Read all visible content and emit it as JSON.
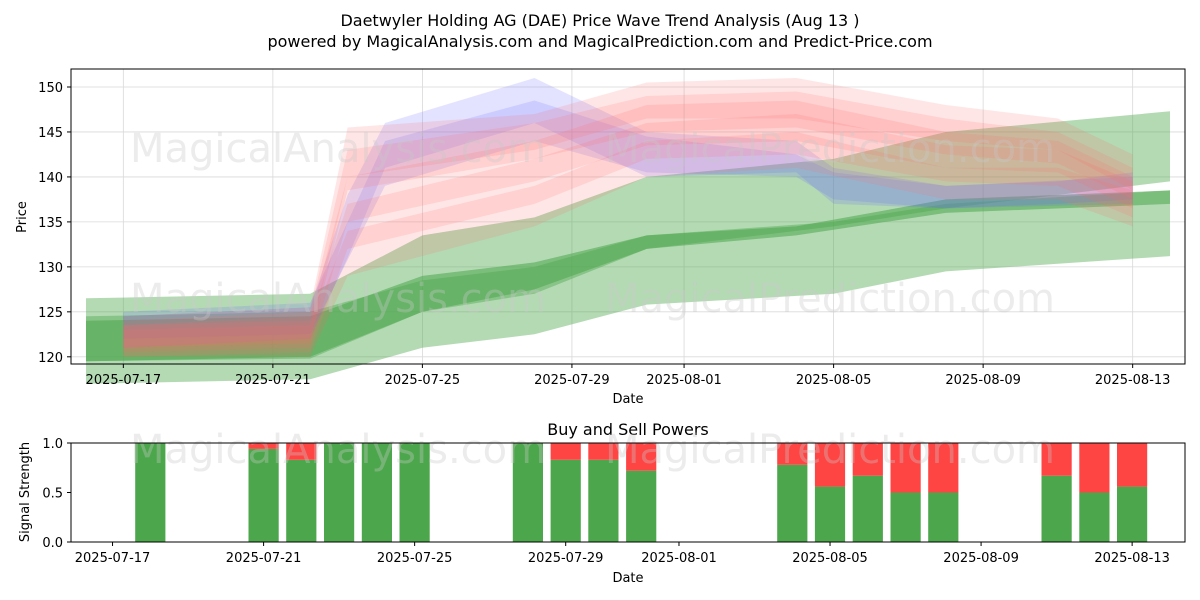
{
  "title_line1": "Daetwyler Holding AG (DAE) Price Wave Trend Analysis (Aug 13 )",
  "title_line2": "powered by MagicalAnalysis.com and MagicalPrediction.com and Predict-Price.com",
  "watermark_a": "MagicalAnalysis.com",
  "watermark_b": "MagicalPrediction.com",
  "colors": {
    "green": "#4ca64c",
    "red": "#ff4444",
    "blue": "#6666ff",
    "pink": "#ff6a6a",
    "grid": "#d9d9d9"
  },
  "chart_data": [
    {
      "type": "area",
      "title": "",
      "xlabel": "Date",
      "ylabel": "Price",
      "xlim": [
        "2025-07-15.6",
        "2025-08-14.4"
      ],
      "ylim": [
        119.2,
        152.0
      ],
      "xticks": [
        "2025-07-17",
        "2025-07-21",
        "2025-07-25",
        "2025-07-29",
        "2025-08-01",
        "2025-08-05",
        "2025-08-09",
        "2025-08-13"
      ],
      "yticks": [
        120,
        125,
        130,
        135,
        140,
        145,
        150
      ],
      "grid": true,
      "green_bands": [
        {
          "name": "wide-upper",
          "x": [
            "2025-07-16",
            "2025-07-22",
            "2025-07-25",
            "2025-07-28",
            "2025-07-31",
            "2025-08-05",
            "2025-08-08",
            "2025-08-14"
          ],
          "upper": [
            126.5,
            127.0,
            133.5,
            135.5,
            140.0,
            142.0,
            145.0,
            147.3
          ],
          "lower": [
            119.5,
            119.8,
            125.0,
            127.0,
            132.0,
            134.5,
            136.5,
            139.5
          ]
        },
        {
          "name": "wide-lower",
          "x": [
            "2025-07-16",
            "2025-07-22",
            "2025-07-25",
            "2025-07-28",
            "2025-07-31",
            "2025-08-05",
            "2025-08-08",
            "2025-08-14"
          ],
          "upper": [
            124.5,
            125.0,
            128.5,
            130.0,
            133.5,
            135.0,
            137.0,
            138.5
          ],
          "lower": [
            117.0,
            117.5,
            121.0,
            122.5,
            125.8,
            127.0,
            129.5,
            131.2
          ]
        },
        {
          "name": "core",
          "x": [
            "2025-07-16",
            "2025-07-22",
            "2025-07-25",
            "2025-07-28",
            "2025-07-31",
            "2025-08-04",
            "2025-08-08",
            "2025-08-14"
          ],
          "upper": [
            124.0,
            124.5,
            129.0,
            130.5,
            133.5,
            134.5,
            137.5,
            138.5
          ],
          "lower": [
            119.5,
            120.0,
            125.0,
            127.5,
            132.0,
            133.5,
            136.0,
            137.0
          ]
        }
      ],
      "blue_bands": [
        {
          "name": "blue-1",
          "x": [
            "2025-07-17",
            "2025-07-22",
            "2025-07-23",
            "2025-07-24",
            "2025-07-28",
            "2025-07-31",
            "2025-08-04",
            "2025-08-05",
            "2025-08-08",
            "2025-08-11",
            "2025-08-13"
          ],
          "upper": [
            124.5,
            125.5,
            138.0,
            146.0,
            151.0,
            145.0,
            144.0,
            141.0,
            139.0,
            139.5,
            140.5
          ],
          "lower": [
            121.0,
            122.0,
            131.0,
            141.0,
            146.0,
            140.0,
            140.5,
            137.0,
            136.5,
            137.0,
            137.5
          ]
        },
        {
          "name": "blue-2",
          "x": [
            "2025-07-17",
            "2025-07-22",
            "2025-07-24",
            "2025-07-28",
            "2025-07-31",
            "2025-08-04",
            "2025-08-05",
            "2025-08-08",
            "2025-08-13"
          ],
          "upper": [
            125.0,
            126.0,
            144.0,
            148.5,
            144.5,
            142.5,
            140.5,
            139.0,
            140.0
          ],
          "lower": [
            122.0,
            122.5,
            139.0,
            144.0,
            140.5,
            140.0,
            137.5,
            136.5,
            137.0
          ]
        }
      ],
      "red_bands": [
        {
          "x": [
            "2025-07-17",
            "2025-07-22",
            "2025-07-23",
            "2025-07-28",
            "2025-07-31",
            "2025-08-04",
            "2025-08-08",
            "2025-08-11",
            "2025-08-13"
          ],
          "upper": [
            124.5,
            125.5,
            145.5,
            147.0,
            150.5,
            151.0,
            148.0,
            146.5,
            142.5
          ],
          "lower": [
            121.0,
            122.0,
            140.0,
            143.0,
            146.5,
            146.5,
            144.0,
            143.0,
            138.5
          ]
        },
        {
          "x": [
            "2025-07-17",
            "2025-07-22",
            "2025-07-23",
            "2025-07-28",
            "2025-07-31",
            "2025-08-04",
            "2025-08-08",
            "2025-08-11",
            "2025-08-13"
          ],
          "upper": [
            124.0,
            125.0,
            143.0,
            146.0,
            149.0,
            149.5,
            146.5,
            145.0,
            141.0
          ],
          "lower": [
            121.0,
            121.5,
            138.5,
            142.0,
            145.0,
            145.5,
            142.5,
            141.5,
            137.5
          ]
        },
        {
          "x": [
            "2025-07-17",
            "2025-07-22",
            "2025-07-23",
            "2025-07-28",
            "2025-07-31",
            "2025-08-04",
            "2025-08-08",
            "2025-08-11",
            "2025-08-13"
          ],
          "upper": [
            123.5,
            124.5,
            140.0,
            144.0,
            148.0,
            148.5,
            145.0,
            144.0,
            140.0
          ],
          "lower": [
            120.5,
            121.0,
            135.0,
            139.5,
            143.5,
            144.0,
            141.0,
            140.5,
            136.5
          ]
        },
        {
          "x": [
            "2025-07-17",
            "2025-07-22",
            "2025-07-23",
            "2025-07-28",
            "2025-07-31",
            "2025-08-04",
            "2025-08-08",
            "2025-08-11",
            "2025-08-13"
          ],
          "upper": [
            123.5,
            124.0,
            137.0,
            142.0,
            146.0,
            147.0,
            143.5,
            143.0,
            139.5
          ],
          "lower": [
            120.0,
            120.5,
            132.0,
            137.0,
            142.0,
            142.5,
            139.5,
            139.0,
            135.5
          ]
        },
        {
          "x": [
            "2025-07-17",
            "2025-07-22",
            "2025-07-23",
            "2025-07-28",
            "2025-07-31",
            "2025-08-04",
            "2025-08-08",
            "2025-08-11",
            "2025-08-13"
          ],
          "upper": [
            123.0,
            123.5,
            134.0,
            139.0,
            144.0,
            145.0,
            141.0,
            141.0,
            138.5
          ],
          "lower": [
            120.0,
            120.0,
            129.0,
            134.5,
            140.0,
            141.0,
            137.5,
            137.5,
            134.5
          ]
        }
      ]
    },
    {
      "type": "bar",
      "title": "Buy and Sell Powers",
      "xlabel": "Date",
      "ylabel": "Signal Strength",
      "xlim": [
        "2025-07-15.9",
        "2025-08-14.4"
      ],
      "ylim": [
        0.0,
        1.0
      ],
      "yticks": [
        "0.0",
        "0.5",
        "1.0"
      ],
      "xticks": [
        "2025-07-17",
        "2025-07-21",
        "2025-07-25",
        "2025-07-29",
        "2025-08-01",
        "2025-08-05",
        "2025-08-09",
        "2025-08-13"
      ],
      "categories": [
        "2025-07-18",
        "2025-07-21",
        "2025-07-22",
        "2025-07-23",
        "2025-07-24",
        "2025-07-25",
        "2025-07-28",
        "2025-07-29",
        "2025-07-30",
        "2025-07-31",
        "2025-08-04",
        "2025-08-05",
        "2025-08-06",
        "2025-08-07",
        "2025-08-08",
        "2025-08-11",
        "2025-08-12",
        "2025-08-13"
      ],
      "series": [
        {
          "name": "Buy",
          "values": [
            1.0,
            0.94,
            0.83,
            1.0,
            1.0,
            1.0,
            1.0,
            0.83,
            0.83,
            0.72,
            0.78,
            0.56,
            0.67,
            0.5,
            0.5,
            0.67,
            0.5,
            0.56
          ]
        },
        {
          "name": "Sell",
          "values": [
            0.0,
            0.06,
            0.17,
            0.0,
            0.0,
            0.0,
            0.0,
            0.17,
            0.17,
            0.28,
            0.22,
            0.44,
            0.33,
            0.5,
            0.5,
            0.33,
            0.5,
            0.44
          ]
        }
      ]
    }
  ]
}
